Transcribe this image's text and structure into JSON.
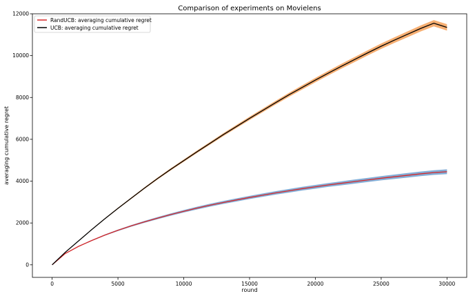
{
  "chart_data": {
    "type": "line",
    "title": "Comparison of experiments on Movielens",
    "xlabel": "round",
    "ylabel": "averaging cumulative regret",
    "xlim": [
      -1500,
      31500
    ],
    "ylim": [
      -600,
      12000
    ],
    "xticks": [
      0,
      5000,
      10000,
      15000,
      20000,
      25000,
      30000
    ],
    "xtick_labels": [
      "0",
      "5000",
      "10000",
      "15000",
      "20000",
      "25000",
      "30000"
    ],
    "yticks": [
      0,
      2000,
      4000,
      6000,
      8000,
      10000,
      12000
    ],
    "ytick_labels": [
      "0",
      "2000",
      "4000",
      "6000",
      "8000",
      "10000",
      "12000"
    ],
    "legend_position": "upper-left",
    "grid": false,
    "series": [
      {
        "name": "RandUCB: averaging cumulative regret",
        "color": "#d62728",
        "band_color": "#6f9fcf",
        "x": [
          0,
          1000,
          2000,
          3000,
          4000,
          5000,
          6000,
          7000,
          8000,
          9000,
          10000,
          11000,
          12000,
          13000,
          14000,
          15000,
          16000,
          17000,
          18000,
          19000,
          20000,
          21000,
          22000,
          23000,
          24000,
          25000,
          26000,
          27000,
          28000,
          29000,
          30000
        ],
        "y": [
          0,
          540,
          880,
          1160,
          1420,
          1650,
          1860,
          2050,
          2230,
          2400,
          2560,
          2710,
          2850,
          2980,
          3100,
          3220,
          3330,
          3440,
          3540,
          3640,
          3730,
          3820,
          3900,
          3980,
          4060,
          4140,
          4210,
          4280,
          4350,
          4410,
          4450
        ],
        "band": [
          0,
          15,
          20,
          25,
          30,
          35,
          40,
          45,
          50,
          55,
          60,
          65,
          70,
          72,
          75,
          78,
          80,
          82,
          85,
          88,
          90,
          92,
          95,
          98,
          100,
          102,
          105,
          108,
          110,
          112,
          115
        ]
      },
      {
        "name": "UCB: averaging cumulative regret",
        "color": "#000000",
        "band_color": "#f5a15a",
        "x": [
          0,
          1000,
          2000,
          3000,
          4000,
          5000,
          6000,
          7000,
          8000,
          9000,
          10000,
          11000,
          12000,
          13000,
          14000,
          15000,
          16000,
          17000,
          18000,
          19000,
          20000,
          21000,
          22000,
          23000,
          24000,
          25000,
          26000,
          27000,
          28000,
          29000,
          30000
        ],
        "y": [
          0,
          600,
          1140,
          1680,
          2200,
          2700,
          3180,
          3660,
          4120,
          4560,
          4980,
          5400,
          5810,
          6220,
          6610,
          7000,
          7380,
          7760,
          8130,
          8480,
          8830,
          9170,
          9500,
          9820,
          10140,
          10450,
          10740,
          11020,
          11300,
          11550,
          11350
        ],
        "band": [
          0,
          10,
          15,
          20,
          25,
          30,
          35,
          40,
          45,
          50,
          55,
          60,
          65,
          70,
          75,
          80,
          85,
          90,
          95,
          100,
          105,
          110,
          115,
          120,
          125,
          130,
          135,
          140,
          145,
          150,
          155
        ]
      }
    ]
  }
}
